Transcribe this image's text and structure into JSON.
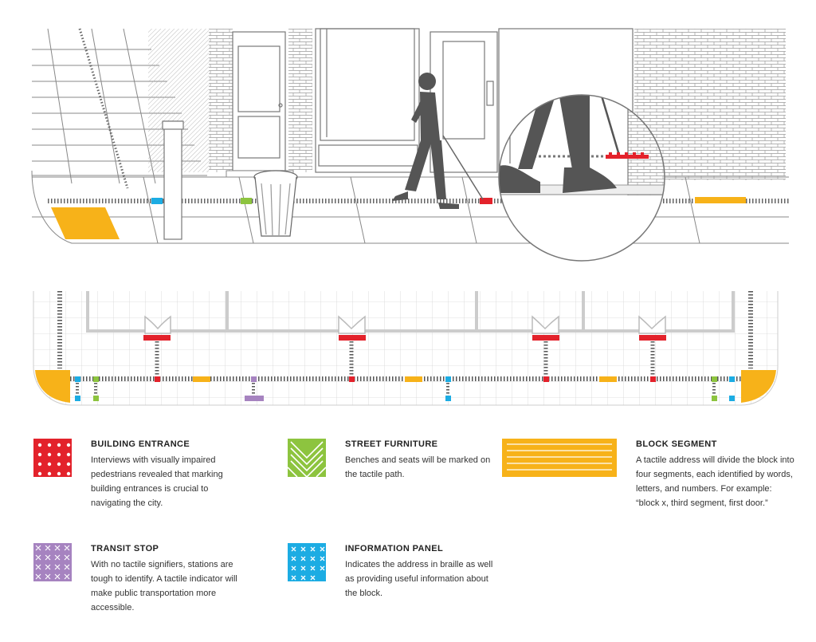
{
  "legend": {
    "building_entrance": {
      "title": "BUILDING ENTRANCE",
      "description": "Interviews with visually impaired pedestrians revealed that marking building entrances is crucial to navigating the city."
    },
    "street_furniture": {
      "title": "STREET FURNITURE",
      "description": "Benches and seats will be marked on the tactile path."
    },
    "block_segment": {
      "title": "BLOCK SEGMENT",
      "description": "A tactile address will divide the block into four segments, each identified by words, letters, and numbers. For example: “block x, third segment, first door.”"
    },
    "transit_stop": {
      "title": "TRANSIT STOP",
      "description": "With no tactile signifiers, stations are tough to identify. A tactile indicator will make public transportation more accessible."
    },
    "information_panel": {
      "title": "INFORMATION PANEL",
      "description": "Indicates the address in braille as well as providing useful information about the block."
    }
  },
  "colors": {
    "building_entrance": "#e3222b",
    "street_furniture": "#8dc43f",
    "block_segment": "#f7b219",
    "transit_stop": "#a683c0",
    "information_panel": "#1cace3",
    "figure": "#555555",
    "line": "#888888",
    "plan_line": "#cccccc"
  }
}
